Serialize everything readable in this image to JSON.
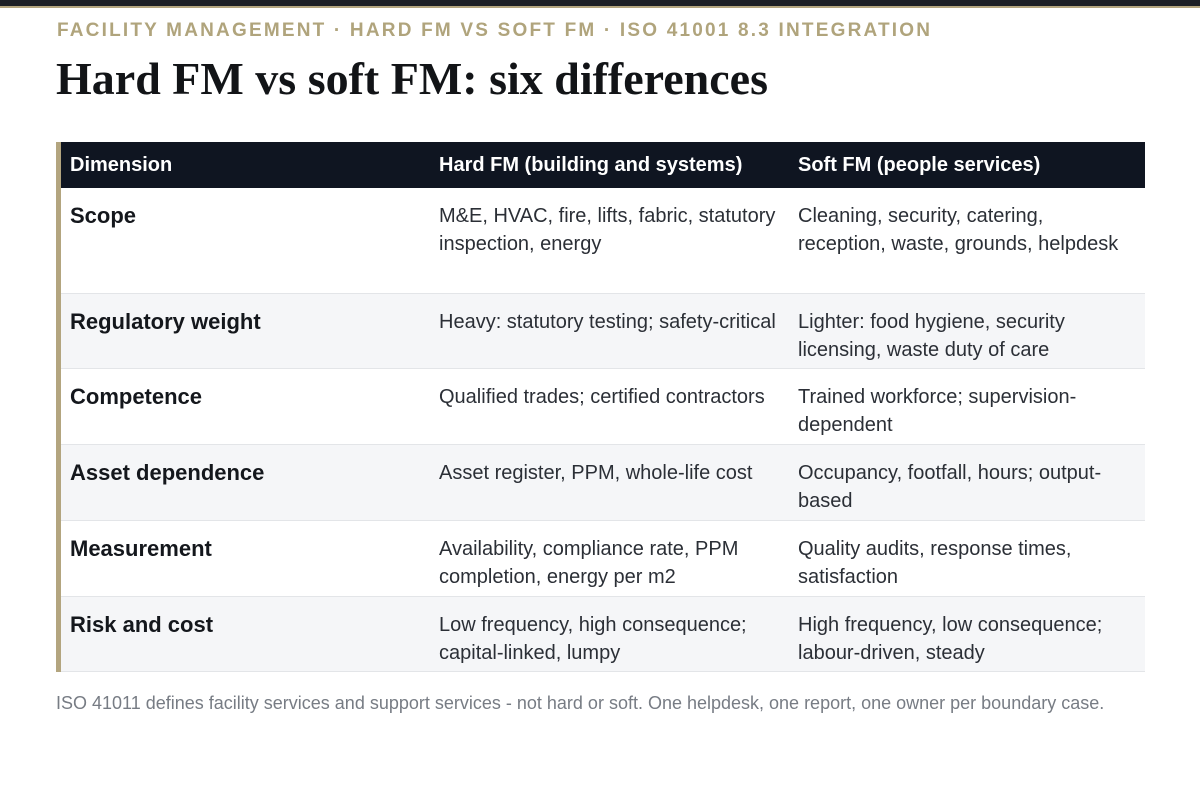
{
  "eyebrow": "FACILITY MANAGEMENT · HARD FM VS SOFT FM · ISO 41001 8.3 INTEGRATION",
  "title": "Hard FM vs soft FM: six differences",
  "table": {
    "headers": [
      "Dimension",
      "Hard FM (building and systems)",
      "Soft FM (people services)"
    ],
    "rows": [
      [
        "Scope",
        "M&E, HVAC, fire, lifts, fabric, statutory inspection, energy",
        "Cleaning, security, catering, reception, waste, grounds, helpdesk"
      ],
      [
        "Regulatory weight",
        "Heavy: statutory testing; safety-critical",
        "Lighter: food hygiene, security licensing, waste duty of care"
      ],
      [
        "Competence",
        "Qualified trades; certified contractors",
        "Trained workforce; supervision-dependent"
      ],
      [
        "Asset dependence",
        "Asset register, PPM, whole-life cost",
        "Occupancy, footfall, hours; output-based"
      ],
      [
        "Measurement",
        "Availability, compliance rate, PPM completion, energy per m2",
        "Quality audits, response times, satisfaction"
      ],
      [
        "Risk and cost",
        "Low frequency, high consequence; capital-linked, lumpy",
        "High frequency, low consequence; labour-driven, steady"
      ]
    ]
  },
  "footnote": "ISO 41011 defines facility services and support services - not hard or soft. One helpdesk, one report, one owner per boundary case.",
  "colors": {
    "accent": "#b3a57f",
    "header_bg": "#0f1521",
    "alt_row": "#f5f6f8",
    "title": "#121417"
  }
}
